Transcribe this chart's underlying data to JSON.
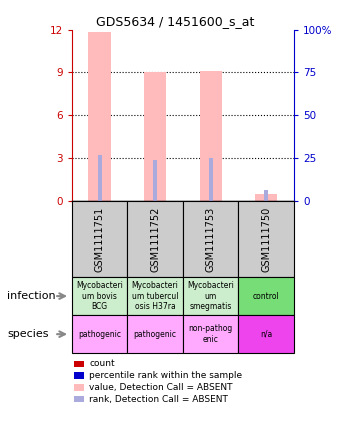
{
  "title": "GDS5634 / 1451600_s_at",
  "samples": [
    "GSM1111751",
    "GSM1111752",
    "GSM1111753",
    "GSM1111750"
  ],
  "bar_values": [
    11.8,
    9.0,
    9.1,
    0.5
  ],
  "rank_values": [
    3.2,
    2.9,
    3.0,
    0.8
  ],
  "bar_color": "#ffbbbb",
  "rank_color": "#aaaadd",
  "ylim_left": [
    0,
    12
  ],
  "ylim_right": [
    0,
    100
  ],
  "yticks_left": [
    0,
    3,
    6,
    9,
    12
  ],
  "yticks_right": [
    0,
    25,
    50,
    75,
    100
  ],
  "ytick_labels_left": [
    "0",
    "3",
    "6",
    "9",
    "12"
  ],
  "ytick_labels_right": [
    "0",
    "25",
    "50",
    "75",
    "100%"
  ],
  "infection_labels": [
    "Mycobacteri\num bovis\nBCG",
    "Mycobacteri\num tubercul\nosis H37ra",
    "Mycobacteri\num\nsmegmatis",
    "control"
  ],
  "infection_colors": [
    "#cceecc",
    "#cceecc",
    "#cceecc",
    "#77dd77"
  ],
  "species_labels": [
    "pathogenic",
    "pathogenic",
    "non-pathog\nenic",
    "n/a"
  ],
  "species_colors": [
    "#ffaaff",
    "#ffaaff",
    "#ffaaff",
    "#ee44ee"
  ],
  "sample_bg_color": "#cccccc",
  "left_axis_color": "#cc0000",
  "right_axis_color": "#0000cc",
  "legend_items": [
    {
      "label": "count",
      "color": "#cc0000"
    },
    {
      "label": "percentile rank within the sample",
      "color": "#0000cc"
    },
    {
      "label": "value, Detection Call = ABSENT",
      "color": "#ffbbbb"
    },
    {
      "label": "rank, Detection Call = ABSENT",
      "color": "#aaaadd"
    }
  ]
}
